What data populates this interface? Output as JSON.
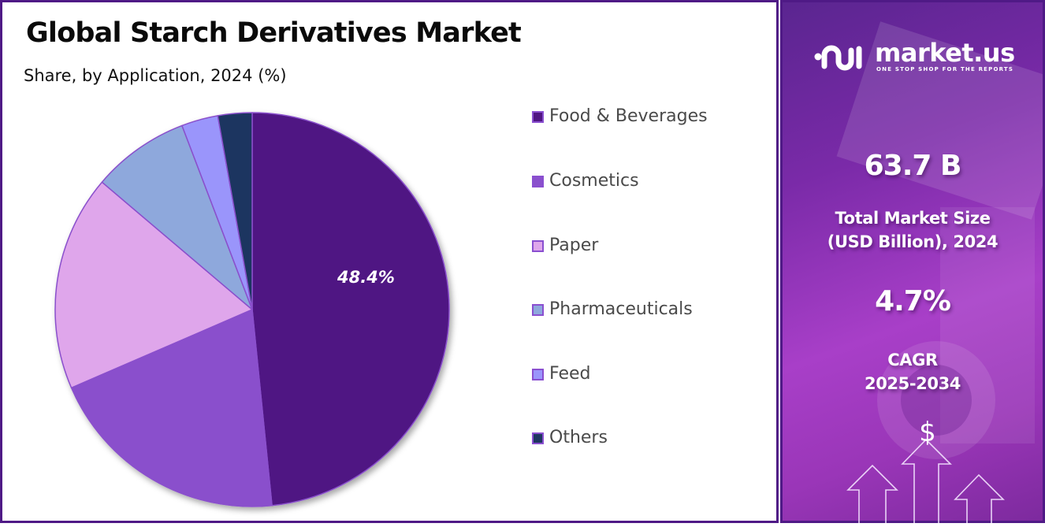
{
  "header": {
    "title": "Global Starch Derivatives Market",
    "subtitle": "Share, by Application, 2024 (%)"
  },
  "chart_data": {
    "type": "pie",
    "title": "Global Starch Derivatives Market",
    "subtitle": "Share, by Application, 2024 (%)",
    "categories": [
      "Food & Beverages",
      "Cosmetics",
      "Paper",
      "Pharmaceuticals",
      "Feed",
      "Others"
    ],
    "values": [
      48.4,
      20.1,
      17.7,
      8.0,
      3.0,
      2.8
    ],
    "colors": [
      "#501683",
      "#8a50cc",
      "#dfa6eb",
      "#8ea8dc",
      "#9a95fb",
      "#1e3660"
    ],
    "data_labels": [
      {
        "category": "Food & Beverages",
        "text": "48.4%"
      }
    ],
    "start_angle_deg": 0,
    "direction": "clockwise",
    "legend_position": "right",
    "slice_border_color": "#8a50cc"
  },
  "pie": {
    "label_text": "48.4%"
  },
  "legend": {
    "items": [
      {
        "label": "Food & Beverages",
        "color": "#501683"
      },
      {
        "label": "Cosmetics",
        "color": "#8a50cc"
      },
      {
        "label": "Paper",
        "color": "#dfa6eb"
      },
      {
        "label": "Pharmaceuticals",
        "color": "#8ea8dc"
      },
      {
        "label": "Feed",
        "color": "#9a95fb"
      },
      {
        "label": "Others",
        "color": "#1e3660"
      }
    ]
  },
  "brand": {
    "name": "market.us",
    "tagline": "ONE STOP SHOP FOR THE REPORTS"
  },
  "stats": {
    "market_size_value": "63.7 B",
    "market_size_label_line1": "Total Market Size",
    "market_size_label_line2": "(USD Billion), 2024",
    "cagr_value": "4.7%",
    "cagr_label_line1": "CAGR",
    "cagr_label_line2": "2025-2034"
  },
  "decoration": {
    "currency_symbol": "$"
  },
  "colors": {
    "frame_border": "#4f1a86",
    "panel_gradient_start": "#5a2590",
    "panel_gradient_mid": "#a83fc8"
  }
}
